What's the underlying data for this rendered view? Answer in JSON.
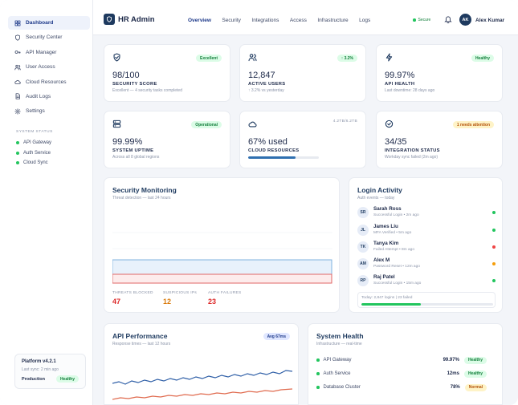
{
  "app": {
    "title": "HR Admin"
  },
  "sidebar": {
    "items": [
      {
        "label": "Dashboard",
        "icon": "grid-icon",
        "active": true
      },
      {
        "label": "Security Center",
        "icon": "shield-icon"
      },
      {
        "label": "API Manager",
        "icon": "key-icon"
      },
      {
        "label": "User Access",
        "icon": "users-icon"
      },
      {
        "label": "Cloud Resources",
        "icon": "cloud-icon"
      },
      {
        "label": "Audit Logs",
        "icon": "document-icon"
      },
      {
        "label": "Settings",
        "icon": "gear-icon"
      }
    ],
    "status_label": "SYSTEM STATUS",
    "status": [
      {
        "label": "API Gateway"
      },
      {
        "label": "Auth Service"
      },
      {
        "label": "Cloud Sync"
      }
    ],
    "platform": {
      "title": "Platform v4.2.1",
      "sub": "Last sync: 2 min ago",
      "env": "Production",
      "badge": "Healthy"
    }
  },
  "header": {
    "nav": [
      "Overview",
      "Security",
      "Integrations",
      "Access",
      "Infrastructure",
      "Logs"
    ],
    "active_nav": 0,
    "secure_label": "Secure",
    "avatar": "AK",
    "user": "Alex Kumar"
  },
  "stats": [
    {
      "icon": "shield-icon",
      "badge": "Excellent",
      "value": "98/100",
      "label": "SECURITY SCORE",
      "sub": "Excellent — 4 security tasks completed"
    },
    {
      "icon": "users-icon",
      "badge": "↑ 3.2%",
      "value": "12,847",
      "label": "ACTIVE USERS",
      "sub": "↑ 3.2% vs yesterday"
    },
    {
      "icon": "bolt-icon",
      "badge": "Healthy",
      "value": "99.97%",
      "label": "API HEALTH",
      "sub": "Last downtime: 28 days ago"
    },
    {
      "icon": "server-icon",
      "badge": "Operational",
      "value": "99.99%",
      "label": "SYSTEM UPTIME",
      "sub": "Across all 8 global regions"
    },
    {
      "icon": "cloud-icon",
      "meta": "4.2TB/6.2TB",
      "value": "67% used",
      "label": "CLOUD RESOURCES",
      "progress": 0.67
    },
    {
      "icon": "target-icon",
      "badge": "1 needs attention",
      "value": "34/35",
      "label": "INTEGRATION STATUS",
      "sub": "Workday sync failed (2m ago)"
    }
  ],
  "security": {
    "title": "Security Monitoring",
    "sub": "Threat detection — last 24 hours",
    "stats": [
      {
        "label": "THREATS BLOCKED",
        "value": "47",
        "color": "#dc2626"
      },
      {
        "label": "SUSPICIOUS IPs",
        "value": "12",
        "color": "#d97706"
      },
      {
        "label": "AUTH FAILURES",
        "value": "23",
        "color": "#dc2626"
      }
    ]
  },
  "login": {
    "title": "Login Activity",
    "sub": "Auth events — today",
    "rows": [
      {
        "initials": "SR",
        "name": "Sarah Ross",
        "event": "Successful Login • 2m ago",
        "status": "#22c55e"
      },
      {
        "initials": "JL",
        "name": "James Liu",
        "event": "MFA Verified • 5m ago",
        "status": "#22c55e"
      },
      {
        "initials": "TK",
        "name": "Tanya Kim",
        "event": "Failed Attempt • 8m ago",
        "status": "#ef4444"
      },
      {
        "initials": "AM",
        "name": "Alex M",
        "event": "Password Reset • 12m ago",
        "status": "#f59e0b"
      },
      {
        "initials": "RP",
        "name": "Raj Patel",
        "event": "Successful Login • 15m ago",
        "status": "#22c55e"
      }
    ],
    "summary": "Today: 2,847 logins | 23 failed",
    "success_ratio": 0.45
  },
  "api_perf": {
    "title": "API Performance",
    "sub": "Response times — last 12 hours",
    "badge": "Avg 67ms"
  },
  "health": {
    "title": "System Health",
    "sub": "Infrastructure — real-time",
    "rows": [
      {
        "name": "API Gateway",
        "value": "99.97%",
        "badge": "Healthy",
        "kind": "green"
      },
      {
        "name": "Auth Service",
        "value": "12ms",
        "badge": "Healthy",
        "kind": "green"
      },
      {
        "name": "Database Cluster",
        "value": "78%",
        "badge": "Normal",
        "kind": "amber"
      }
    ]
  }
}
